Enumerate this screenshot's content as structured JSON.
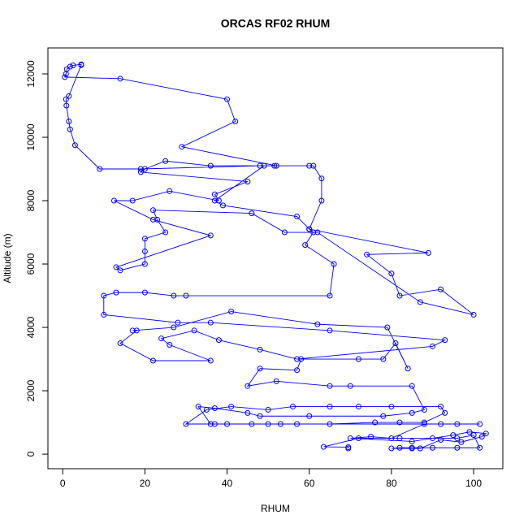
{
  "chart_data": {
    "type": "line",
    "title": "ORCAS RF02 RHUM",
    "x_label": "RHUM",
    "y_label": "Altitude (m)",
    "color": "#0000ff",
    "markers": "circle",
    "x": [
      69.5,
      69.5,
      63.5,
      72,
      82,
      90,
      96,
      100,
      101.5,
      96,
      90,
      85,
      82,
      80,
      85,
      87,
      92,
      97,
      102,
      103,
      99,
      95,
      85,
      70,
      75,
      80,
      88,
      92,
      101.5,
      96,
      57,
      50,
      40,
      37,
      30,
      35,
      41,
      50,
      56,
      65,
      72,
      80,
      92,
      93,
      88,
      82,
      76,
      65,
      53,
      46,
      36,
      33,
      37,
      45,
      48,
      60,
      78,
      85,
      88,
      85,
      70,
      65,
      52,
      45,
      48,
      57,
      58,
      72,
      78,
      81,
      84,
      79,
      62,
      41,
      27,
      17,
      18,
      14,
      22,
      36,
      26,
      24,
      32,
      38,
      48,
      57,
      90,
      93,
      65,
      36,
      28,
      10,
      10,
      13,
      20,
      27,
      30,
      65,
      66,
      59,
      61,
      60,
      89,
      74,
      80,
      82,
      92,
      100,
      87,
      62,
      54,
      46,
      22,
      23,
      25,
      20,
      20,
      20,
      14,
      13,
      36,
      22,
      12.5,
      17,
      26,
      38,
      37,
      45,
      19,
      20,
      25,
      36,
      51.5,
      61,
      63,
      63,
      60,
      57,
      39,
      37,
      49,
      52,
      29,
      42,
      40,
      14,
      0.5,
      0.8,
      1,
      1.8,
      2.5,
      4.5,
      4.5,
      1.5,
      0.8,
      0.9,
      1.5,
      1.8,
      3,
      9,
      19,
      48,
      60
    ],
    "values": [
      180,
      220,
      230,
      500,
      500,
      500,
      500,
      600,
      200,
      200,
      200,
      200,
      200,
      180,
      180,
      180,
      450,
      380,
      550,
      650,
      700,
      600,
      400,
      500,
      550,
      500,
      950,
      950,
      950,
      950,
      950,
      950,
      950,
      950,
      950,
      1400,
      1500,
      1400,
      1500,
      1500,
      1500,
      1500,
      1500,
      1300,
      1000,
      1000,
      1000,
      950,
      950,
      950,
      950,
      1500,
      1450,
      1300,
      1200,
      1200,
      1200,
      1300,
      1400,
      2150,
      2150,
      2150,
      2300,
      2150,
      2700,
      2650,
      3000,
      3000,
      3000,
      3500,
      2700,
      4000,
      4100,
      4500,
      4000,
      3900,
      3900,
      3500,
      2950,
      2950,
      3450,
      3650,
      3900,
      3600,
      3300,
      3000,
      3400,
      3600,
      3900,
      4150,
      4150,
      4400,
      5000,
      5100,
      5100,
      5000,
      5000,
      5000,
      6000,
      6600,
      7000,
      7100,
      6350,
      6300,
      5700,
      5000,
      5200,
      4400,
      4800,
      7000,
      7000,
      7600,
      7700,
      7400,
      7000,
      6800,
      6400,
      6000,
      5800,
      5900,
      6900,
      7400,
      8000,
      8000,
      8300,
      8000,
      8200,
      8600,
      8900,
      9000,
      9250,
      9100,
      9100,
      9100,
      8700,
      8000,
      7100,
      7500,
      7850,
      8000,
      9100,
      9100,
      9700,
      10500,
      11200,
      11850,
      11900,
      12000,
      12150,
      12230,
      12270,
      12300,
      12280,
      11300,
      11200,
      11000,
      10500,
      10250,
      9750,
      9000,
      9000,
      9100,
      9100
    ],
    "xlim": [
      -3.6,
      107.1
    ],
    "ylim": [
      -460,
      12820
    ],
    "xticks": [
      0,
      20,
      40,
      60,
      80,
      100
    ],
    "yticks": [
      0,
      2000,
      4000,
      6000,
      8000,
      10000,
      12000
    ]
  }
}
